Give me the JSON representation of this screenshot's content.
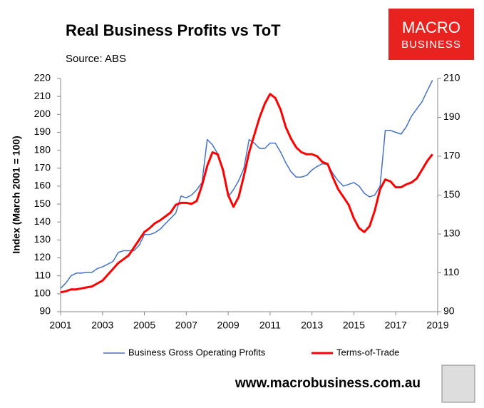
{
  "chart_data": {
    "type": "line",
    "title": "Real Business Profits vs ToT",
    "subtitle": "Source: ABS",
    "ylabel": "Index (March 2001 = 100)",
    "logo": [
      "MACRO",
      "BUSINESS"
    ],
    "website": "www.macrobusiness.com.au",
    "x": [
      2001,
      2001.25,
      2001.5,
      2001.75,
      2002,
      2002.25,
      2002.5,
      2002.75,
      2003,
      2003.25,
      2003.5,
      2003.75,
      2004,
      2004.25,
      2004.5,
      2004.75,
      2005,
      2005.25,
      2005.5,
      2005.75,
      2006,
      2006.25,
      2006.5,
      2006.75,
      2007,
      2007.25,
      2007.5,
      2007.75,
      2008,
      2008.25,
      2008.5,
      2008.75,
      2009,
      2009.25,
      2009.5,
      2009.75,
      2010,
      2010.25,
      2010.5,
      2010.75,
      2011,
      2011.25,
      2011.5,
      2011.75,
      2012,
      2012.25,
      2012.5,
      2012.75,
      2013,
      2013.25,
      2013.5,
      2013.75,
      2014,
      2014.25,
      2014.5,
      2014.75,
      2015,
      2015.25,
      2015.5,
      2015.75,
      2016,
      2016.25,
      2016.5,
      2016.75,
      2017,
      2017.25,
      2017.5,
      2017.75,
      2018,
      2018.25,
      2018.5,
      2018.75
    ],
    "series": [
      {
        "name": "Business Gross Operating Profits",
        "color": "#4472c4",
        "axis": "y",
        "values": [
          103,
          106,
          110,
          111.5,
          111.5,
          112,
          112,
          114,
          115,
          116.5,
          118,
          123,
          124,
          124,
          124,
          127,
          133,
          133,
          134,
          136,
          139,
          142,
          145,
          154.5,
          153.5,
          155,
          158,
          162,
          186,
          183,
          178,
          168,
          154,
          158,
          163,
          170,
          186,
          184,
          181,
          181,
          184,
          184,
          179,
          173,
          168,
          165,
          165,
          166,
          169,
          171,
          172.5,
          172,
          167,
          163,
          160,
          161,
          162,
          160,
          156,
          154,
          155,
          160,
          191,
          191,
          190,
          189,
          193,
          199,
          203,
          207,
          213,
          219
        ]
      },
      {
        "name": "Terms-of-Trade",
        "color": "#ff0000",
        "axis": "y2",
        "values": [
          100,
          100.5,
          101.5,
          101.5,
          102,
          102.5,
          103,
          104.5,
          106,
          109,
          112,
          115,
          117,
          119,
          123,
          127,
          131,
          133,
          135.5,
          137,
          139,
          141,
          145,
          146,
          146,
          145.5,
          147,
          155,
          165,
          172,
          171,
          163,
          150,
          144,
          149,
          160,
          172,
          181,
          190,
          197,
          202,
          200,
          194,
          185,
          179,
          174.5,
          172,
          171,
          171,
          170,
          167,
          166,
          159,
          153,
          149,
          145,
          138,
          133,
          131,
          134,
          142,
          153,
          158,
          157,
          154,
          154,
          155.5,
          156.5,
          158.5,
          163,
          167.5,
          171
        ]
      }
    ],
    "xlim": [
      2001,
      2019
    ],
    "xticks": [
      2001,
      2003,
      2005,
      2007,
      2009,
      2011,
      2013,
      2015,
      2017,
      2019
    ],
    "ylim": [
      90,
      220
    ],
    "yticks": [
      90,
      100,
      110,
      120,
      130,
      140,
      150,
      160,
      170,
      180,
      190,
      200,
      210,
      220
    ],
    "y2lim": [
      90,
      210
    ],
    "y2ticks": [
      90,
      110,
      130,
      150,
      170,
      190,
      210
    ],
    "legend": "bottom"
  }
}
